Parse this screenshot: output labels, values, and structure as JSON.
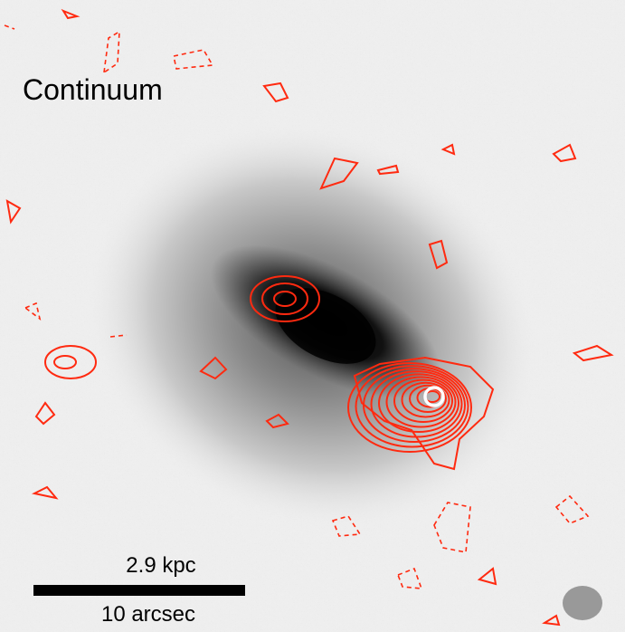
{
  "panel": {
    "label": "Continuum"
  },
  "scale_bar": {
    "physical": "2.9 kpc",
    "angular": "10 arcsec"
  }
}
